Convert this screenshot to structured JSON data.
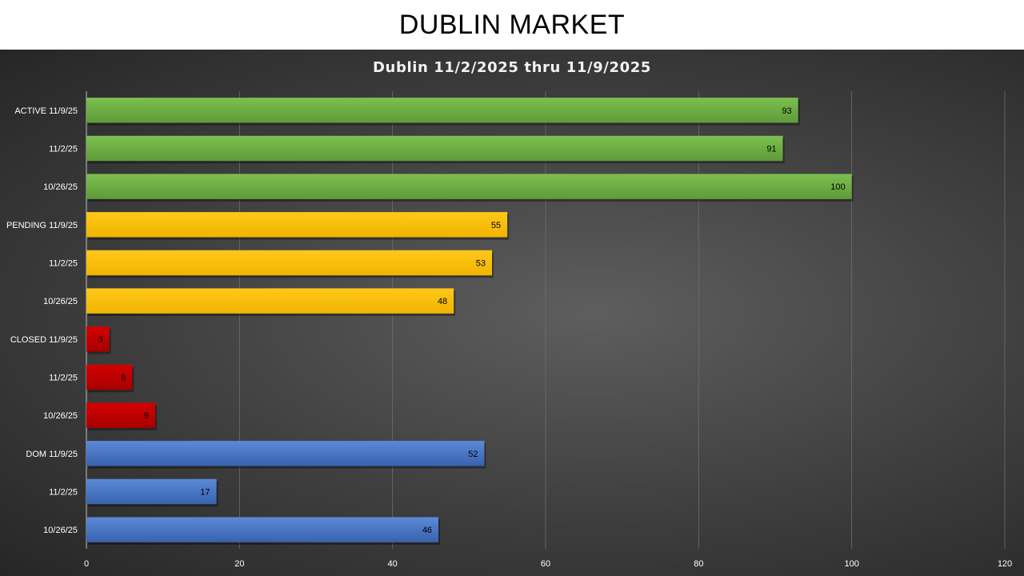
{
  "slide": {
    "title": "DUBLIN MARKET"
  },
  "chart_data": {
    "type": "bar",
    "orientation": "horizontal",
    "title": "Dublin 11/2/2025 thru 11/9/2025",
    "xlim": [
      0,
      120
    ],
    "x_ticks": [
      0,
      20,
      40,
      60,
      80,
      100,
      120
    ],
    "grid": true,
    "legend": "none",
    "categories": [
      "ACTIVE 11/9/25",
      "11/2/25",
      "10/26/25",
      "PENDING 11/9/25",
      "11/2/25",
      "10/26/25",
      "CLOSED 11/9/25",
      "11/2/25",
      "10/26/25",
      "DOM 11/9/25",
      "11/2/25",
      "10/26/25"
    ],
    "values": [
      93,
      91,
      100,
      55,
      53,
      48,
      3,
      6,
      9,
      52,
      17,
      46
    ],
    "groups": [
      {
        "color": "#70ad47"
      },
      {
        "color": "#70ad47"
      },
      {
        "color": "#70ad47"
      },
      {
        "color": "#ffc000"
      },
      {
        "color": "#ffc000"
      },
      {
        "color": "#ffc000"
      },
      {
        "color": "#c00000"
      },
      {
        "color": "#c00000"
      },
      {
        "color": "#c00000"
      },
      {
        "color": "#4472c4"
      },
      {
        "color": "#4472c4"
      },
      {
        "color": "#4472c4"
      }
    ]
  }
}
